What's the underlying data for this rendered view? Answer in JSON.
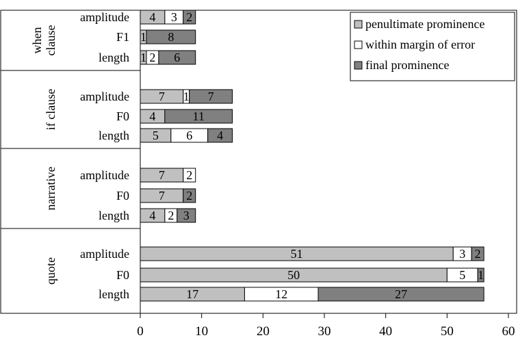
{
  "chart_data": {
    "type": "bar",
    "orientation": "horizontal",
    "stacked": true,
    "title": "",
    "xlabel": "",
    "ylabel": "",
    "xlim": [
      0,
      60
    ],
    "x_ticks": [
      0,
      10,
      20,
      30,
      40,
      50,
      60
    ],
    "grid": false,
    "legend_position": "top-right",
    "series": [
      {
        "name": "penultimate prominence",
        "color": "#c0c0c0"
      },
      {
        "name": "within margin of error",
        "color": "#ffffff"
      },
      {
        "name": "final prominence",
        "color": "#808080"
      }
    ],
    "groups": [
      {
        "label": "when clause",
        "label_lines": [
          "when",
          "clause"
        ],
        "bars": [
          {
            "label": "amplitude",
            "values": [
              4,
              3,
              2
            ]
          },
          {
            "label": "F1",
            "values": [
              1,
              0,
              8
            ]
          },
          {
            "label": "length",
            "values": [
              1,
              2,
              6
            ]
          }
        ]
      },
      {
        "label": "if clause",
        "label_lines": [
          "if clause"
        ],
        "bars": [
          {
            "label": "amplitude",
            "values": [
              7,
              1,
              7
            ]
          },
          {
            "label": "F0",
            "values": [
              4,
              0,
              11
            ]
          },
          {
            "label": "length",
            "values": [
              5,
              6,
              4
            ]
          }
        ]
      },
      {
        "label": "narrative",
        "label_lines": [
          "narrative"
        ],
        "bars": [
          {
            "label": "amplitude",
            "values": [
              7,
              2,
              0
            ]
          },
          {
            "label": "F0",
            "values": [
              7,
              0,
              2
            ]
          },
          {
            "label": "length",
            "values": [
              4,
              2,
              3
            ]
          }
        ]
      },
      {
        "label": "quote",
        "label_lines": [
          "quote"
        ],
        "bars": [
          {
            "label": "amplitude",
            "values": [
              51,
              3,
              2
            ]
          },
          {
            "label": "F0",
            "values": [
              50,
              5,
              1
            ]
          },
          {
            "label": "length",
            "values": [
              17,
              12,
              27
            ]
          }
        ]
      }
    ]
  }
}
